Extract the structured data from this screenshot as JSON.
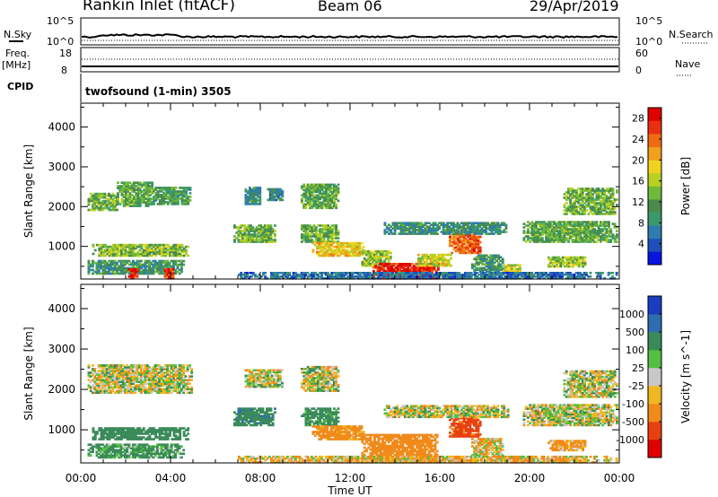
{
  "header": {
    "site": "Rankin Inlet (fitACF)",
    "beam": "Beam 06",
    "date": "29/Apr/2019"
  },
  "summary": {
    "nsky_label": "N.Sky",
    "nsky_ticks": [
      "10^5",
      "10^0"
    ],
    "nsearch_label": "N.Search",
    "nsearch_ticks": [
      "10^5",
      "10^0"
    ],
    "freq_label": "Freq.",
    "freq_unit": "[MHz]",
    "freq_ticks": [
      "18",
      "8"
    ],
    "nave_label": "Nave",
    "nave_ticks": [
      "60",
      "0"
    ],
    "cpid_label": "CPID",
    "cpid_text": "twofsound (1-min) 3505"
  },
  "chart_data": [
    {
      "type": "heatmap",
      "title": "",
      "xlabel": "Time UT",
      "ylabel": "Slant Range [km]",
      "xticks": [
        "00:00",
        "04:00",
        "08:00",
        "12:00",
        "16:00",
        "20:00",
        "00:00"
      ],
      "xlim_hours": [
        0,
        24
      ],
      "ylim": [
        180,
        4600
      ],
      "yticks": [
        1000,
        2000,
        3000,
        4000
      ],
      "colorbar": {
        "label": "Power [dB]",
        "ticks": [
          "4",
          "8",
          "12",
          "16",
          "20",
          "24",
          "28"
        ],
        "range": [
          0,
          30
        ],
        "colors": [
          "#0a14e0",
          "#1f4fb8",
          "#2e7bb0",
          "#3a9a6e",
          "#4a8a4a",
          "#6fb93a",
          "#b8d020",
          "#f0d21e",
          "#f0a01a",
          "#ef6a10",
          "#e83010",
          "#e00000"
        ]
      },
      "regions": [
        {
          "t0": 0.3,
          "t1": 1.6,
          "r0": 1900,
          "r1": 2350,
          "v": 13
        },
        {
          "t0": 1.6,
          "t1": 3.2,
          "r0": 2000,
          "r1": 2600,
          "v": 12
        },
        {
          "t0": 3.2,
          "t1": 4.9,
          "r0": 2050,
          "r1": 2500,
          "v": 11
        },
        {
          "t0": 0.5,
          "t1": 4.8,
          "r0": 750,
          "r1": 1050,
          "v": 14
        },
        {
          "t0": 0.3,
          "t1": 4.6,
          "r0": 300,
          "r1": 650,
          "v": 10
        },
        {
          "t0": 2.1,
          "t1": 2.5,
          "r0": 180,
          "r1": 420,
          "v": 28
        },
        {
          "t0": 3.7,
          "t1": 4.1,
          "r0": 180,
          "r1": 420,
          "v": 26
        },
        {
          "t0": 6.8,
          "t1": 8.6,
          "r0": 1100,
          "r1": 1550,
          "v": 13
        },
        {
          "t0": 7.3,
          "t1": 8.0,
          "r0": 2050,
          "r1": 2500,
          "v": 9
        },
        {
          "t0": 8.3,
          "t1": 9.0,
          "r0": 2150,
          "r1": 2450,
          "v": 8
        },
        {
          "t0": 9.8,
          "t1": 11.5,
          "r0": 1950,
          "r1": 2550,
          "v": 12
        },
        {
          "t0": 9.8,
          "t1": 11.5,
          "r0": 1100,
          "r1": 1550,
          "v": 13
        },
        {
          "t0": 10.3,
          "t1": 12.6,
          "r0": 750,
          "r1": 1100,
          "v": 19
        },
        {
          "t0": 12.5,
          "t1": 13.8,
          "r0": 500,
          "r1": 900,
          "v": 15
        },
        {
          "t0": 13.0,
          "t1": 15.9,
          "r0": 180,
          "r1": 560,
          "v": 28
        },
        {
          "t0": 15.0,
          "t1": 16.5,
          "r0": 500,
          "r1": 800,
          "v": 17
        },
        {
          "t0": 16.4,
          "t1": 17.8,
          "r0": 820,
          "r1": 1400,
          "v": 24
        },
        {
          "t0": 17.4,
          "t1": 18.8,
          "r0": 350,
          "r1": 800,
          "v": 10
        },
        {
          "t0": 18.8,
          "t1": 19.6,
          "r0": 330,
          "r1": 520,
          "v": 17
        },
        {
          "t0": 13.5,
          "t1": 19.0,
          "r0": 1300,
          "r1": 1600,
          "v": 9
        },
        {
          "t0": 19.7,
          "t1": 23.9,
          "r0": 1100,
          "r1": 1600,
          "v": 12
        },
        {
          "t0": 21.5,
          "t1": 23.9,
          "r0": 1800,
          "r1": 2450,
          "v": 13
        },
        {
          "t0": 20.8,
          "t1": 22.5,
          "r0": 480,
          "r1": 750,
          "v": 15
        },
        {
          "t0": 7.0,
          "t1": 23.9,
          "r0": 180,
          "r1": 330,
          "v": 6
        }
      ]
    },
    {
      "type": "heatmap",
      "title": "",
      "xlabel": "Time UT",
      "ylabel": "Slant Range [km]",
      "xticks": [
        "00:00",
        "04:00",
        "08:00",
        "12:00",
        "16:00",
        "20:00",
        "00:00"
      ],
      "xlim_hours": [
        0,
        24
      ],
      "ylim": [
        180,
        4600
      ],
      "yticks": [
        1000,
        2000,
        3000,
        4000
      ],
      "colorbar": {
        "label": "Velocity [m s^-1]",
        "ticks": [
          "1000",
          "500",
          "100",
          "25",
          "-25",
          "-100",
          "-500",
          "-1000"
        ],
        "levels": [
          1000,
          500,
          100,
          25,
          -25,
          -100,
          -500,
          -1000
        ],
        "colors": [
          "#1a3cc0",
          "#2e6eb0",
          "#3a8a5a",
          "#52c040",
          "#c8c8c8",
          "#f0b820",
          "#f08a1a",
          "#e84010",
          "#e00000"
        ]
      },
      "regions": [
        {
          "t0": 0.3,
          "t1": 4.9,
          "r0": 1900,
          "r1": 2600,
          "v": 0
        },
        {
          "t0": 0.5,
          "t1": 4.8,
          "r0": 750,
          "r1": 1050,
          "v": 300
        },
        {
          "t0": 0.3,
          "t1": 4.6,
          "r0": 300,
          "r1": 650,
          "v": 150
        },
        {
          "t0": 6.8,
          "t1": 8.6,
          "r0": 1100,
          "r1": 1550,
          "v": 400
        },
        {
          "t0": 7.3,
          "t1": 9.0,
          "r0": 2050,
          "r1": 2500,
          "v": 0
        },
        {
          "t0": 9.8,
          "t1": 11.5,
          "r0": 1950,
          "r1": 2550,
          "v": 0
        },
        {
          "t0": 9.8,
          "t1": 11.5,
          "r0": 1100,
          "r1": 1550,
          "v": 200
        },
        {
          "t0": 10.3,
          "t1": 12.6,
          "r0": 750,
          "r1": 1100,
          "v": -200
        },
        {
          "t0": 12.5,
          "t1": 15.9,
          "r0": 180,
          "r1": 900,
          "v": -300
        },
        {
          "t0": 16.4,
          "t1": 17.8,
          "r0": 820,
          "r1": 1400,
          "v": -600
        },
        {
          "t0": 17.4,
          "t1": 18.8,
          "r0": 350,
          "r1": 800,
          "v": -60
        },
        {
          "t0": 13.5,
          "t1": 19.0,
          "r0": 1300,
          "r1": 1600,
          "v": 0
        },
        {
          "t0": 19.7,
          "t1": 23.9,
          "r0": 1100,
          "r1": 1600,
          "v": 0
        },
        {
          "t0": 21.5,
          "t1": 23.9,
          "r0": 1800,
          "r1": 2450,
          "v": 0
        },
        {
          "t0": 20.8,
          "t1": 22.5,
          "r0": 480,
          "r1": 750,
          "v": -150
        },
        {
          "t0": 7.0,
          "t1": 23.9,
          "r0": 180,
          "r1": 330,
          "v": -80
        }
      ]
    }
  ]
}
